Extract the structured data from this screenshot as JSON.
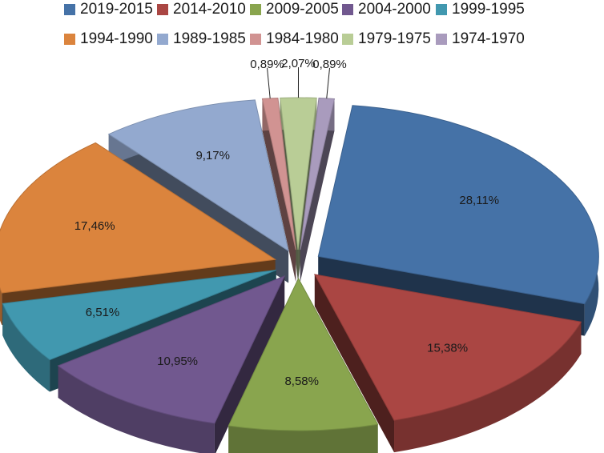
{
  "chart_data": {
    "type": "pie",
    "title": "",
    "legend_position": "top",
    "decimal_separator": ",",
    "categories": [
      "2019-2015",
      "2014-2010",
      "2009-2005",
      "2004-2000",
      "1999-1995",
      "1994-1990",
      "1989-1985",
      "1984-1980",
      "1979-1975",
      "1974-1970"
    ],
    "values": [
      28.11,
      15.38,
      8.58,
      10.95,
      6.51,
      17.46,
      9.17,
      0.89,
      2.07,
      0.89
    ],
    "labels": [
      "28,11%",
      "15,38%",
      "8,58%",
      "10,95%",
      "6,51%",
      "17,46%",
      "9,17%",
      "0,89%",
      "2,07%",
      "0,89%"
    ],
    "colors": [
      "#4572a7",
      "#aa4643",
      "#89a54e",
      "#71588f",
      "#4198af",
      "#db843d",
      "#93a9cf",
      "#d19392",
      "#b9cd96",
      "#a99bbd"
    ]
  }
}
